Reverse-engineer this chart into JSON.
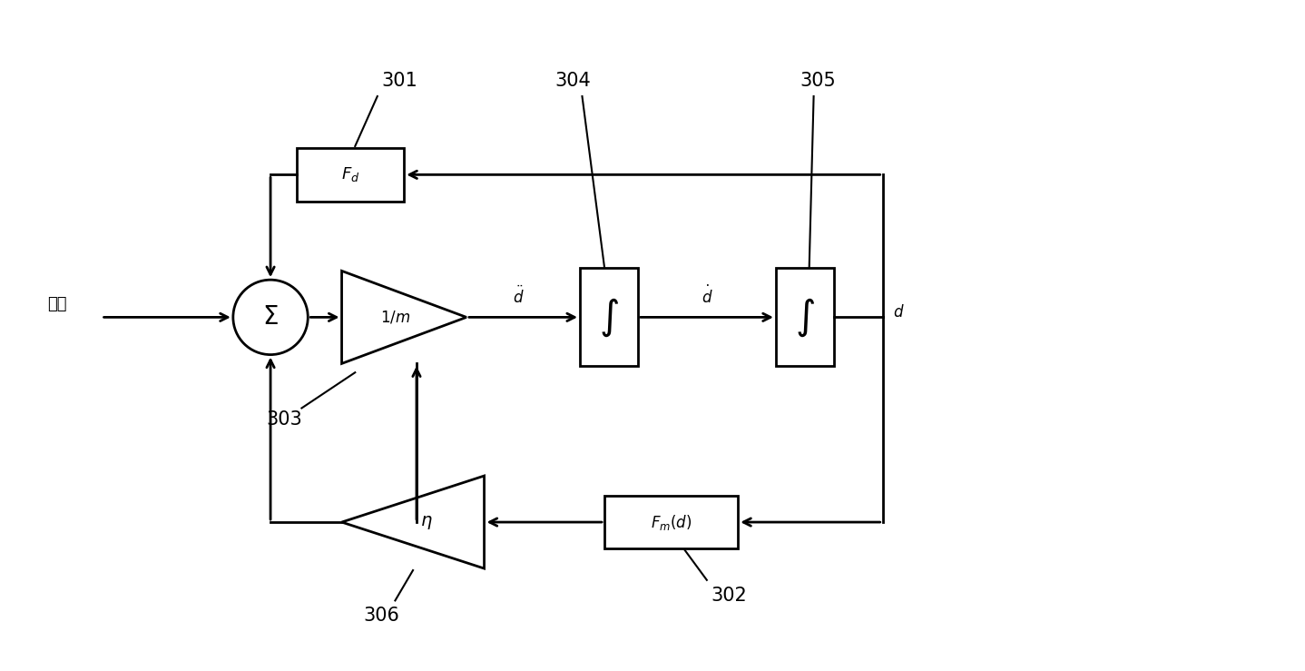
{
  "bg_color": "#ffffff",
  "line_color": "#000000",
  "fig_width": 14.38,
  "fig_height": 7.39,
  "dpi": 100,
  "label_301": "301",
  "label_302": "302",
  "label_303": "303",
  "label_304": "304",
  "label_305": "305",
  "label_306": "306",
  "waili": "外力"
}
